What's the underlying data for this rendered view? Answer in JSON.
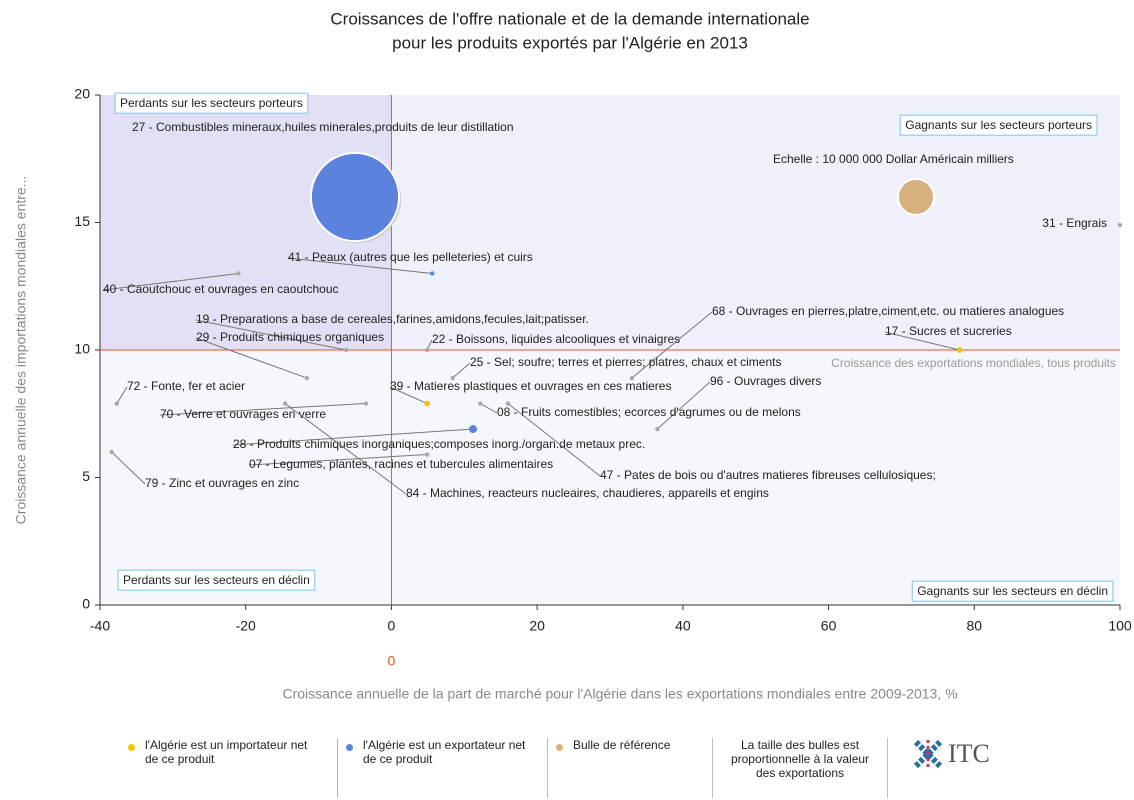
{
  "chart_data": {
    "type": "bubble",
    "title": [
      "Croissances de l'offre nationale et de la demande internationale",
      "pour les produits exportés par l'Algérie en 2013"
    ],
    "xlabel": "Croissance annuelle de la part de marché pour l'Algérie dans les exportations mondiales entre 2009-2013, %",
    "ylabel": "Croissance annuelle des importations mondiales entre...",
    "xlim": [
      -40,
      100
    ],
    "ylim": [
      0,
      20
    ],
    "xticks": [
      -40,
      -20,
      0,
      20,
      40,
      60,
      80,
      100
    ],
    "yticks": [
      0,
      5,
      10,
      15,
      20
    ],
    "xref": 0,
    "yref": 10,
    "yref_label": "Croissance des exportations mondiales, tous produits",
    "quadrants": [
      "Perdants sur les secteurs porteurs",
      "Gagnants sur les secteurs porteurs",
      "Perdants sur les secteurs en déclin",
      "Gagnants sur les secteurs en déclin"
    ],
    "reference": {
      "label": "Echelle : 10 000 000 Dollar Américain milliers",
      "x": 72,
      "y": 16,
      "size": 10000000,
      "color": "#d8b07e"
    },
    "points": [
      {
        "label": "27 - Combustibles mineraux,huiles minerales,produits de leur distillation",
        "x": -5,
        "y": 16,
        "size": 60000000,
        "color": "#5b82dc"
      },
      {
        "label": "31 - Engrais",
        "x": 100,
        "y": 14.9,
        "size": 150000,
        "color": "#a8a8a8"
      },
      {
        "label": "41 - Peaux (autres que les pelleteries) et cuirs",
        "x": 5.6,
        "y": 13,
        "size": 150000,
        "color": "#5b82dc"
      },
      {
        "label": "40 - Caoutchouc et ouvrages en caoutchouc",
        "x": -21,
        "y": 13,
        "size": 150000,
        "color": "#a8a8a8"
      },
      {
        "label": "19 - Preparations a base de cereales,farines,amidons,fecules,lait;patisser.",
        "x": -6.2,
        "y": 10,
        "size": 150000,
        "color": "#a8a8a8"
      },
      {
        "label": "29 - Produits chimiques organiques",
        "x": -11.6,
        "y": 8.9,
        "size": 150000,
        "color": "#a8a8a8"
      },
      {
        "label": "22 - Boissons, liquides alcooliques et vinaigres",
        "x": 4.9,
        "y": 10,
        "size": 150000,
        "color": "#a8a8a8"
      },
      {
        "label": "68 - Ouvrages en pierres,platre,ciment,etc. ou matieres analogues",
        "x": 33,
        "y": 8.9,
        "size": 150000,
        "color": "#a8a8a8"
      },
      {
        "label": "17 - Sucres et sucreries",
        "x": 78,
        "y": 10,
        "size": 250000,
        "color": "#f2c500"
      },
      {
        "label": "25 - Sel; soufre; terres et pierres; platres, chaux et ciments",
        "x": 8.4,
        "y": 8.9,
        "size": 150000,
        "color": "#a8a8a8"
      },
      {
        "label": "39 - Matieres plastiques et ouvrages en ces matieres",
        "x": 4.9,
        "y": 7.9,
        "size": 250000,
        "color": "#f2c500"
      },
      {
        "label": "96 - Ouvrages divers",
        "x": 36.5,
        "y": 6.9,
        "size": 150000,
        "color": "#a8a8a8"
      },
      {
        "label": "72 - Fonte, fer et acier",
        "x": -37.7,
        "y": 7.9,
        "size": 150000,
        "color": "#a8a8a8"
      },
      {
        "label": "70 - Verre et ouvrages en verre",
        "x": -3.5,
        "y": 7.9,
        "size": 150000,
        "color": "#a8a8a8"
      },
      {
        "label": "08 - Fruits comestibles; ecorces d'agrumes ou de melons",
        "x": 12.2,
        "y": 7.9,
        "size": 150000,
        "color": "#a8a8a8"
      },
      {
        "label": "28 - Produits chimiques inorganiques;composes inorg./organ.de metaux prec.",
        "x": 11.2,
        "y": 6.9,
        "size": 500000,
        "color": "#5b82dc"
      },
      {
        "label": "07 - Legumes, plantes, racines et tubercules alimentaires",
        "x": 4.9,
        "y": 5.9,
        "size": 150000,
        "color": "#a8a8a8"
      },
      {
        "label": "47 - Pates de bois ou d'autres matieres fibreuses cellulosiques;",
        "x": 16,
        "y": 7.9,
        "size": 150000,
        "color": "#a8a8a8"
      },
      {
        "label": "84 - Machines, reacteurs nucleaires, chaudieres, appareils et engins",
        "x": -14.6,
        "y": 7.9,
        "size": 150000,
        "color": "#a8a8a8"
      },
      {
        "label": "79 - Zinc et ouvrages en zinc",
        "x": -38.4,
        "y": 6,
        "size": 150000,
        "color": "#a8a8a8"
      }
    ],
    "legend": [
      {
        "label": "l'Algérie est un importateur net de ce produit",
        "color": "#f2c500"
      },
      {
        "label": "l'Algérie est un exportateur net de ce produit",
        "color": "#5b82dc"
      },
      {
        "label": "Bulle de référence",
        "color": "#d8b07e"
      }
    ],
    "note": "La taille des bulles est proportionnelle à la valeur des exportations",
    "logo": "ITC"
  }
}
